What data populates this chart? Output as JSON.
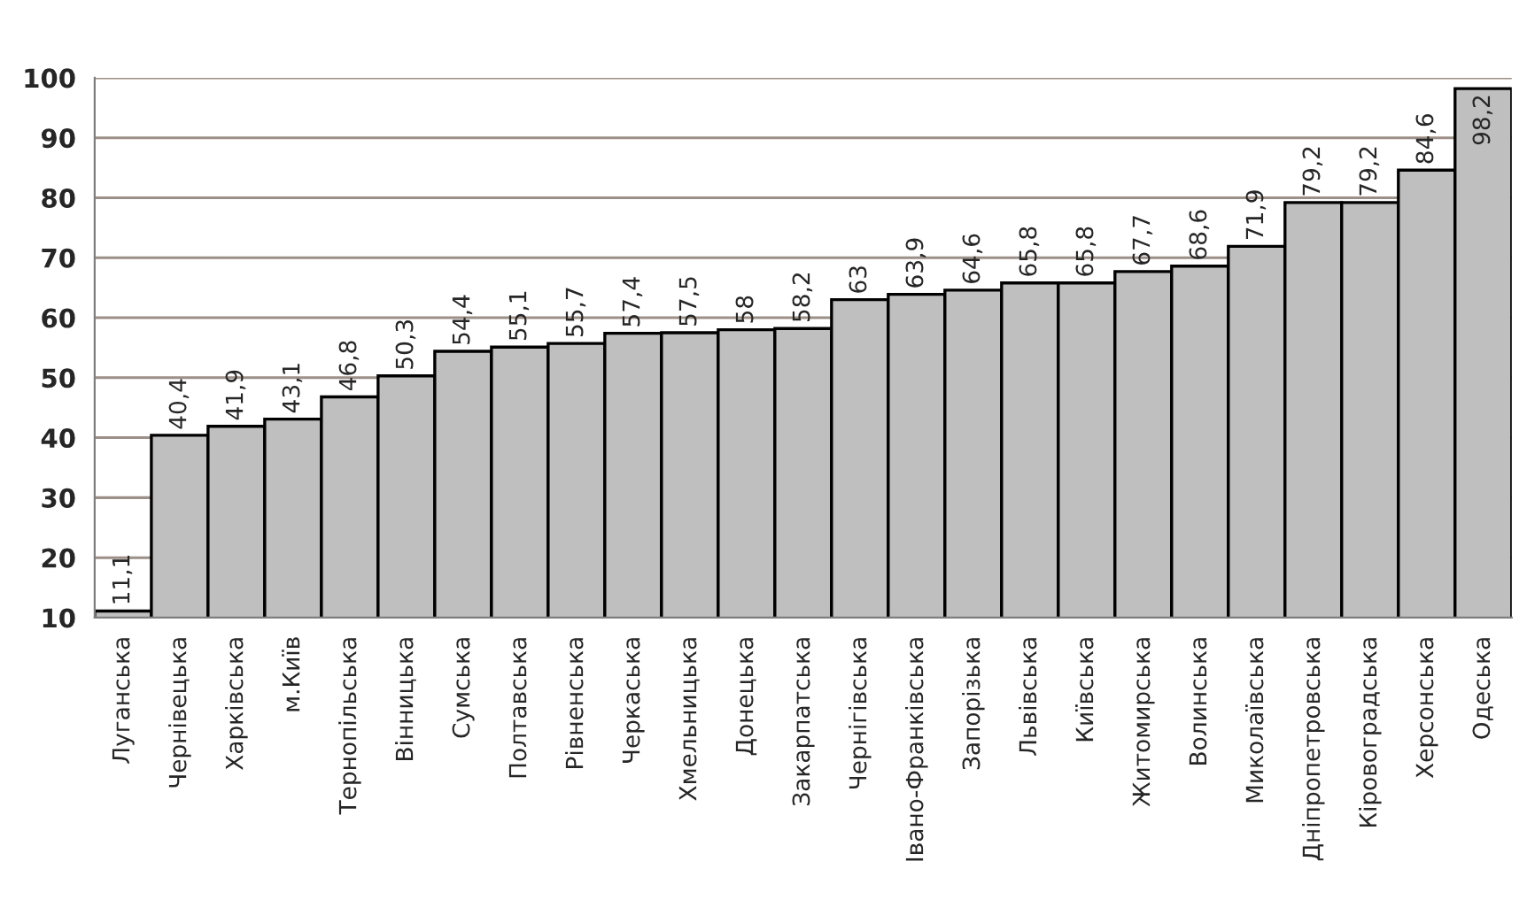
{
  "chart_data": {
    "type": "bar",
    "categories": [
      "Луганська",
      "Чернівецька",
      "Харківська",
      "м.Київ",
      "Тернопільська",
      "Вінницька",
      "Сумська",
      "Полтавська",
      "Рівненська",
      "Черкаська",
      "Хмельницька",
      "Донецька",
      "Закарпатська",
      "Чернігівська",
      "Івано-Франківська",
      "Запорізька",
      "Львівська",
      "Київська",
      "Житомирська",
      "Волинська",
      "Миколаївська",
      "Дніпропетровська",
      "Кіровоградська",
      "Херсонська",
      "Одеська"
    ],
    "values": [
      11.1,
      40.4,
      41.9,
      43.1,
      46.8,
      50.3,
      54.4,
      55.1,
      55.7,
      57.4,
      57.5,
      58,
      58.2,
      63,
      63.9,
      64.6,
      65.8,
      65.8,
      67.7,
      68.6,
      71.9,
      79.2,
      79.2,
      84.6,
      98.2
    ],
    "value_labels": [
      "11,1",
      "40,4",
      "41,9",
      "43,1",
      "46,8",
      "50,3",
      "54,4",
      "55,1",
      "55,7",
      "57,4",
      "57,5",
      "58",
      "58,2",
      "63",
      "63,9",
      "64,6",
      "65,8",
      "65,8",
      "67,7",
      "68,6",
      "71,9",
      "79,2",
      "79,2",
      "84,6",
      "98,2"
    ],
    "color": "#bfbfbf",
    "ylim": [
      10,
      100
    ],
    "yticks": [
      10,
      20,
      30,
      40,
      50,
      60,
      70,
      80,
      90,
      100
    ],
    "grid": "y"
  }
}
